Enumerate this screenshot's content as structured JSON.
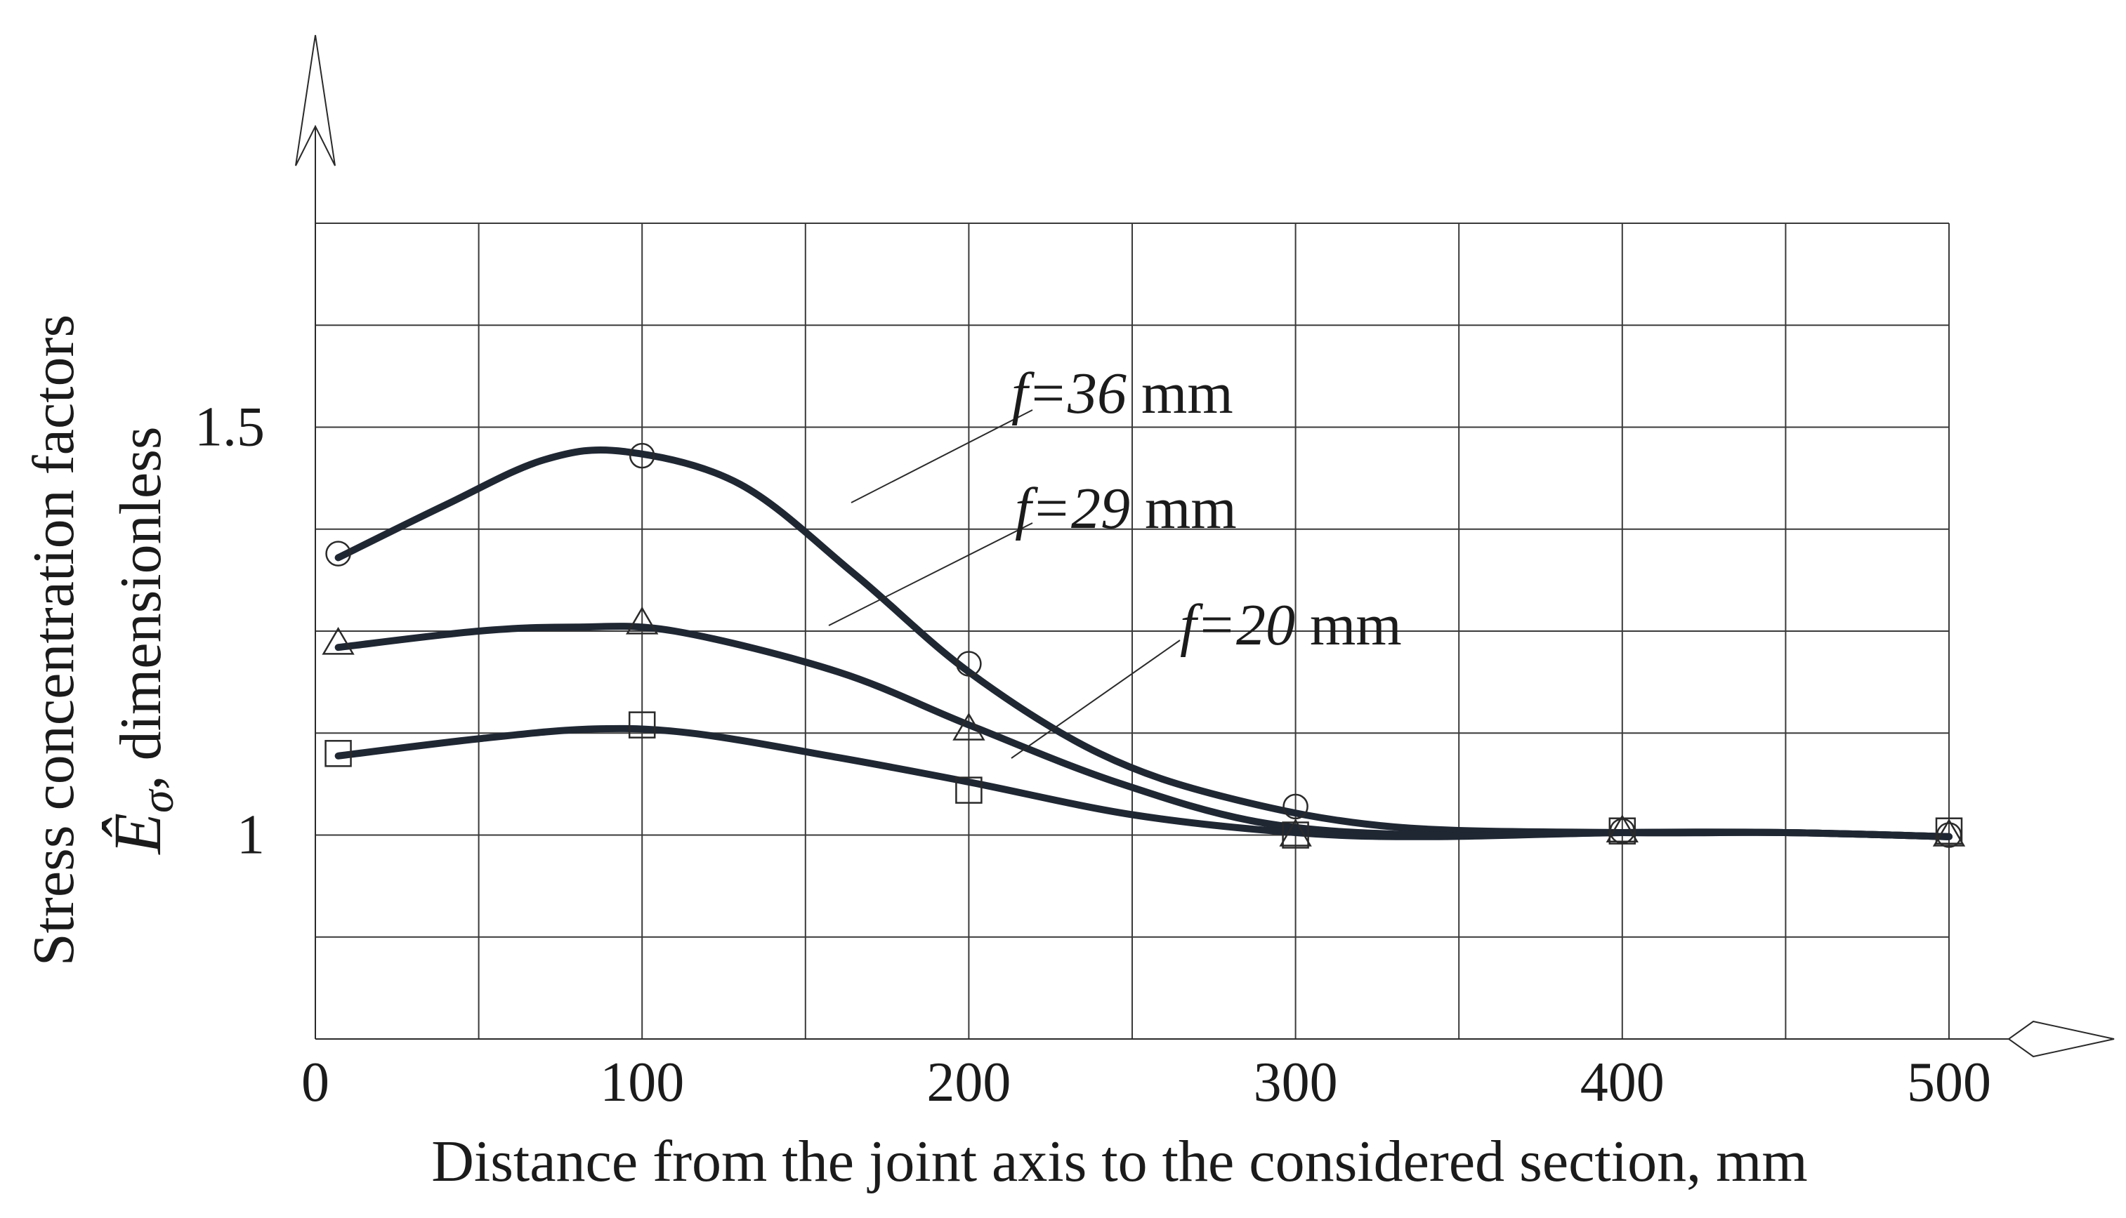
{
  "chart_data": {
    "type": "line",
    "xlabel": "Distance from the joint axis to the considered section, mm",
    "ylabel_line1": "Stress concentration factors",
    "ylabel_symbol": "Ê",
    "ylabel_subscript": "σ",
    "ylabel_line2_rest": ", dimensionless",
    "xlim": [
      0,
      500
    ],
    "ylim": [
      0.75,
      1.75
    ],
    "x_ticks": [
      {
        "value": 0,
        "label": "0"
      },
      {
        "value": 100,
        "label": "100"
      },
      {
        "value": 200,
        "label": "200"
      },
      {
        "value": 300,
        "label": "300"
      },
      {
        "value": 400,
        "label": "400"
      },
      {
        "value": 500,
        "label": "500"
      }
    ],
    "y_ticks": [
      {
        "value": 1.5,
        "label": "1.5"
      },
      {
        "value": 1.0,
        "label": "1"
      }
    ],
    "x_grid": [
      0,
      50,
      100,
      150,
      200,
      250,
      300,
      350,
      400,
      450,
      500
    ],
    "y_grid": [
      0.75,
      0.875,
      1.0,
      1.125,
      1.25,
      1.375,
      1.5,
      1.625,
      1.75
    ],
    "grid": true,
    "series": [
      {
        "label_prefix": "f",
        "label_value": "=36",
        "label_unit": " mm",
        "marker": "circle",
        "points": [
          {
            "x": 7,
            "y": 1.345
          },
          {
            "x": 100,
            "y": 1.465
          },
          {
            "x": 200,
            "y": 1.21
          },
          {
            "x": 300,
            "y": 1.035
          },
          {
            "x": 400,
            "y": 1.005
          },
          {
            "x": 500,
            "y": 1.0
          }
        ],
        "curve": [
          {
            "x": 7,
            "y": 1.34
          },
          {
            "x": 40,
            "y": 1.405
          },
          {
            "x": 70,
            "y": 1.46
          },
          {
            "x": 95,
            "y": 1.47
          },
          {
            "x": 130,
            "y": 1.43
          },
          {
            "x": 165,
            "y": 1.32
          },
          {
            "x": 200,
            "y": 1.2
          },
          {
            "x": 240,
            "y": 1.1
          },
          {
            "x": 280,
            "y": 1.045
          },
          {
            "x": 330,
            "y": 1.01
          },
          {
            "x": 400,
            "y": 1.003
          },
          {
            "x": 450,
            "y": 1.003
          },
          {
            "x": 500,
            "y": 0.998
          }
        ]
      },
      {
        "label_prefix": "f",
        "label_value": "=29",
        "label_unit": " mm",
        "marker": "triangle",
        "points": [
          {
            "x": 7,
            "y": 1.235
          },
          {
            "x": 100,
            "y": 1.26
          },
          {
            "x": 200,
            "y": 1.13
          },
          {
            "x": 300,
            "y": 1.0
          },
          {
            "x": 400,
            "y": 1.005
          },
          {
            "x": 500,
            "y": 1.0
          }
        ],
        "curve": [
          {
            "x": 7,
            "y": 1.23
          },
          {
            "x": 50,
            "y": 1.25
          },
          {
            "x": 80,
            "y": 1.255
          },
          {
            "x": 110,
            "y": 1.25
          },
          {
            "x": 160,
            "y": 1.2
          },
          {
            "x": 200,
            "y": 1.135
          },
          {
            "x": 245,
            "y": 1.065
          },
          {
            "x": 290,
            "y": 1.015
          },
          {
            "x": 340,
            "y": 1.0
          },
          {
            "x": 400,
            "y": 1.003
          },
          {
            "x": 450,
            "y": 1.003
          },
          {
            "x": 500,
            "y": 0.998
          }
        ]
      },
      {
        "label_prefix": "f",
        "label_value": "=20",
        "label_unit": " mm",
        "marker": "square",
        "points": [
          {
            "x": 7,
            "y": 1.1
          },
          {
            "x": 100,
            "y": 1.135
          },
          {
            "x": 200,
            "y": 1.055
          },
          {
            "x": 300,
            "y": 1.0
          },
          {
            "x": 400,
            "y": 1.005
          },
          {
            "x": 500,
            "y": 1.005
          }
        ],
        "curve": [
          {
            "x": 7,
            "y": 1.097
          },
          {
            "x": 50,
            "y": 1.118
          },
          {
            "x": 85,
            "y": 1.13
          },
          {
            "x": 115,
            "y": 1.125
          },
          {
            "x": 160,
            "y": 1.095
          },
          {
            "x": 200,
            "y": 1.065
          },
          {
            "x": 250,
            "y": 1.025
          },
          {
            "x": 300,
            "y": 1.003
          },
          {
            "x": 340,
            "y": 0.998
          },
          {
            "x": 400,
            "y": 1.003
          },
          {
            "x": 450,
            "y": 1.003
          },
          {
            "x": 500,
            "y": 0.998
          }
        ]
      }
    ]
  }
}
